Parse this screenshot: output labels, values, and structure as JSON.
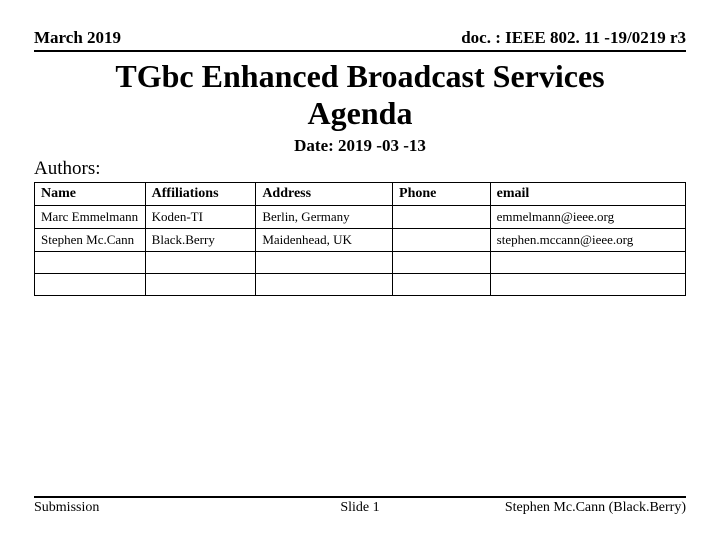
{
  "header": {
    "left": "March 2019",
    "right": "doc. : IEEE 802. 11 -19/0219 r3"
  },
  "title_line1": "TGbc Enhanced Broadcast Services",
  "title_line2": "Agenda",
  "date_label": "Date:",
  "date_value": "2019 -03 -13",
  "authors_label": "Authors:",
  "table": {
    "columns": [
      "Name",
      "Affiliations",
      "Address",
      "Phone",
      "email"
    ],
    "rows": [
      [
        "Marc Emmelmann",
        "Koden-TI",
        "Berlin, Germany",
        "",
        "emmelmann@ieee.org"
      ],
      [
        "Stephen Mc.Cann",
        "Black.Berry",
        "Maidenhead, UK",
        "",
        "stephen.mccann@ieee.org"
      ],
      [
        "",
        "",
        "",
        "",
        ""
      ],
      [
        "",
        "",
        "",
        "",
        ""
      ]
    ]
  },
  "footer": {
    "left": "Submission",
    "center": "Slide 1",
    "right": "Stephen Mc.Cann (Black.Berry)"
  }
}
